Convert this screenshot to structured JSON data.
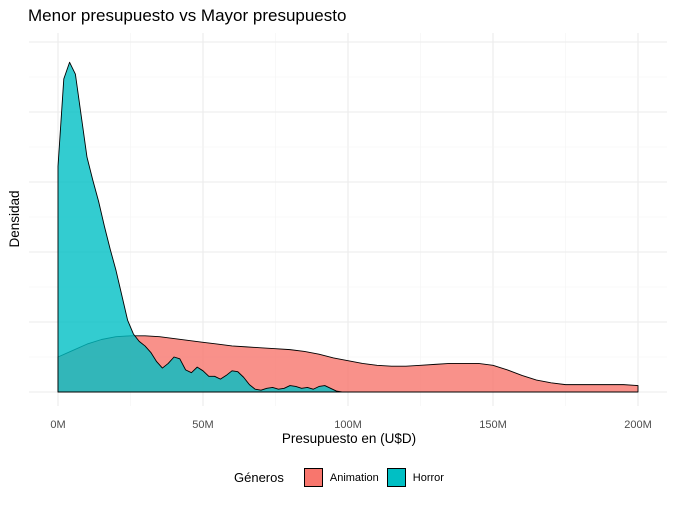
{
  "chart_data": {
    "type": "area",
    "title": "Menor presupuesto vs Mayor presupuesto",
    "xlabel": "Presupuesto en (U$D)",
    "ylabel": "Densidad",
    "x_ticks": [
      "0M",
      "50M",
      "100M",
      "150M",
      "200M"
    ],
    "xlim": [
      0,
      200
    ],
    "ylim": [
      0,
      0.038
    ],
    "grid": true,
    "legend_title": "Géneros",
    "legend_position": "bottom",
    "series": [
      {
        "name": "Animation",
        "color": "#F8766D",
        "x": [
          0,
          5,
          10,
          15,
          20,
          25,
          30,
          35,
          40,
          45,
          50,
          55,
          60,
          65,
          70,
          75,
          80,
          85,
          90,
          95,
          100,
          105,
          110,
          115,
          120,
          125,
          130,
          135,
          140,
          145,
          150,
          155,
          160,
          165,
          170,
          175,
          180,
          185,
          190,
          195,
          200
        ],
        "values": [
          0.0038,
          0.0045,
          0.0052,
          0.0057,
          0.006,
          0.0061,
          0.0061,
          0.006,
          0.0058,
          0.0056,
          0.0054,
          0.0052,
          0.005,
          0.0049,
          0.0048,
          0.0047,
          0.0046,
          0.0044,
          0.0041,
          0.0037,
          0.0034,
          0.0031,
          0.0029,
          0.0028,
          0.0028,
          0.0029,
          0.003,
          0.0031,
          0.0031,
          0.0031,
          0.0029,
          0.0024,
          0.0018,
          0.0013,
          0.001,
          0.0008,
          0.0008,
          0.0008,
          0.0008,
          0.0008,
          0.0007
        ]
      },
      {
        "name": "Horror",
        "color": "#00BFC4",
        "x": [
          0,
          2,
          4,
          6,
          8,
          10,
          12,
          14,
          16,
          18,
          20,
          22,
          24,
          26,
          28,
          30,
          32,
          34,
          36,
          38,
          40,
          42,
          44,
          46,
          48,
          50,
          52,
          54,
          56,
          58,
          60,
          62,
          64,
          66,
          68,
          70,
          72,
          74,
          76,
          78,
          80,
          82,
          84,
          86,
          88,
          90,
          92,
          94,
          96,
          98
        ],
        "values": [
          0.0245,
          0.034,
          0.0358,
          0.0345,
          0.03,
          0.0255,
          0.023,
          0.0207,
          0.018,
          0.0155,
          0.0132,
          0.0105,
          0.0078,
          0.0063,
          0.0055,
          0.005,
          0.0043,
          0.0033,
          0.0026,
          0.0031,
          0.0038,
          0.0036,
          0.0024,
          0.0021,
          0.0027,
          0.0023,
          0.0017,
          0.0017,
          0.0014,
          0.0018,
          0.0023,
          0.0022,
          0.0016,
          0.0008,
          0.0003,
          0.0002,
          0.0004,
          0.0005,
          0.0003,
          0.0004,
          0.0007,
          0.0006,
          0.0004,
          0.0005,
          0.0003,
          0.0006,
          0.0007,
          0.0004,
          0.0001,
          0.0
        ]
      }
    ]
  }
}
